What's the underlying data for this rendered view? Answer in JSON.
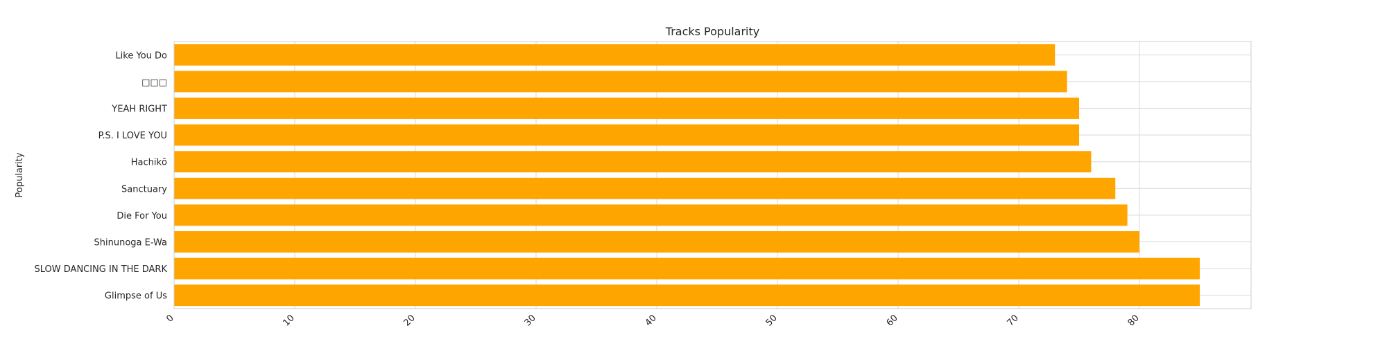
{
  "chart_data": {
    "type": "bar",
    "orientation": "horizontal",
    "title": "Tracks Popularity",
    "xlabel": "",
    "ylabel": "Popularity",
    "categories": [
      "Glimpse of Us",
      "SLOW DANCING IN THE DARK",
      "Shinunoga E-Wa",
      "Die For You",
      "Sanctuary",
      "Hachikō",
      "P.S. I LOVE YOU",
      "YEAH RIGHT",
      "□□□",
      "Like You Do"
    ],
    "values": [
      85,
      85,
      80,
      79,
      78,
      76,
      75,
      75,
      74,
      73
    ],
    "xlim": [
      0,
      89.25
    ],
    "xticks": [
      0,
      10,
      20,
      30,
      40,
      50,
      60,
      70,
      80
    ],
    "grid": true,
    "legend": "none",
    "bar_color": "#FFA500"
  }
}
